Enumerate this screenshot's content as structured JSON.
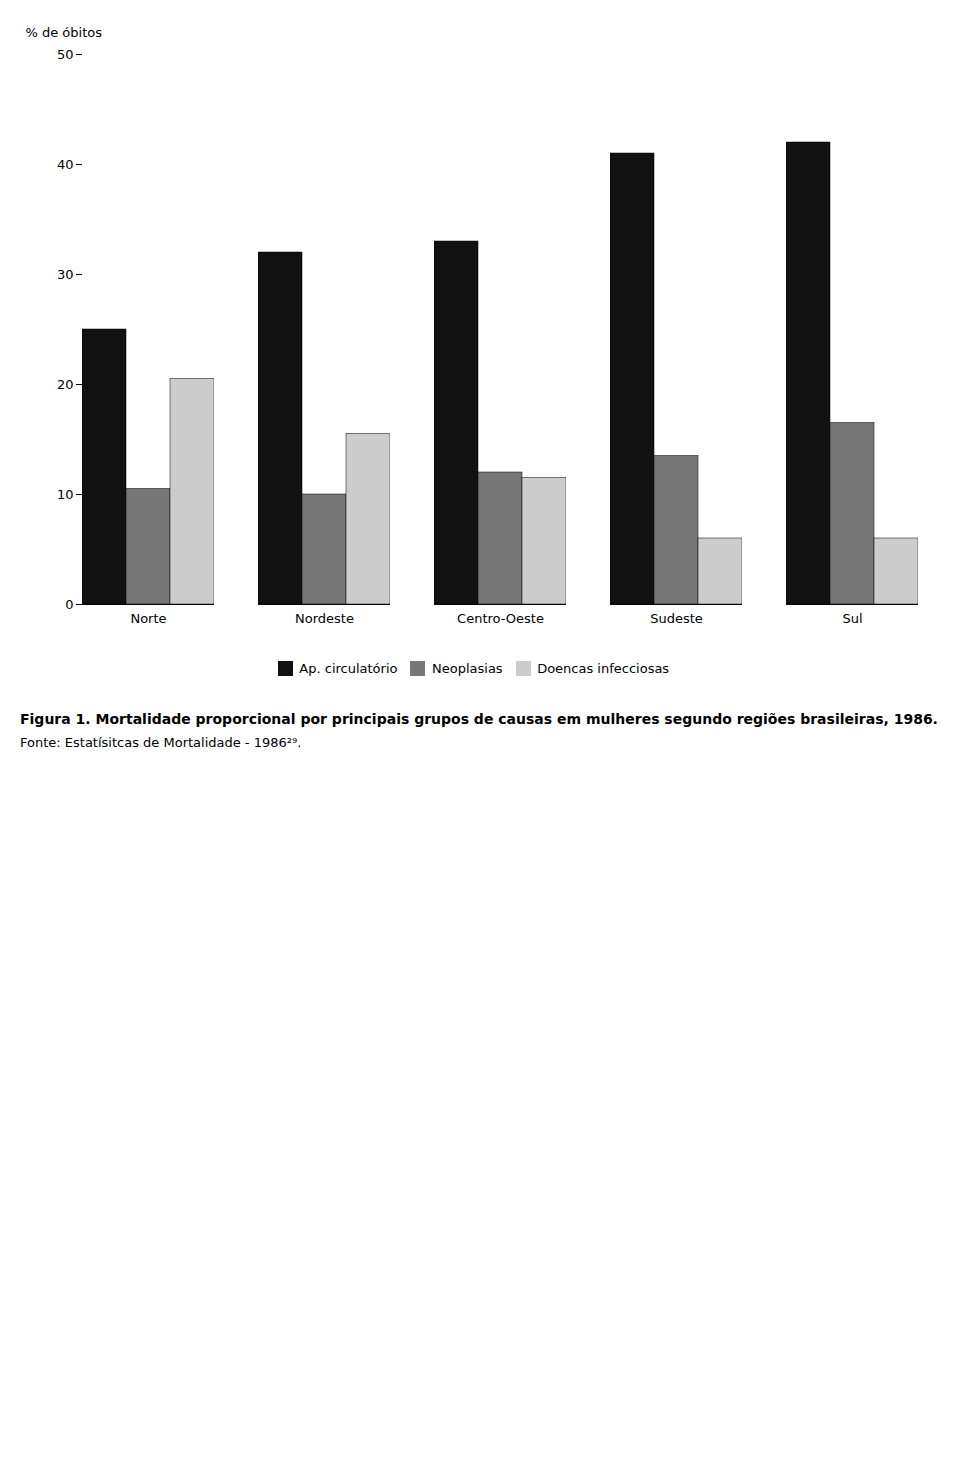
{
  "chart_data": {
    "type": "bar",
    "title": "Figura 1. Mortalidade proporcional por principais grupos de causas em mulheres segundo regiões brasileiras, 1986.",
    "annotations": [
      "Fonte: Estatísitcas de Mortalidade - 1986²⁹."
    ],
    "categories": [
      "Norte",
      "Nordeste",
      "Centro-Oeste",
      "Sudeste",
      "Sul"
    ],
    "series": [
      {
        "name": "Ap. circulatório",
        "color": "#111111",
        "values": [
          25.0,
          32.0,
          33.0,
          41.0,
          42.0
        ]
      },
      {
        "name": "Neoplasias",
        "color": "#777777",
        "values": [
          10.5,
          10.0,
          12.0,
          13.5,
          16.5
        ]
      },
      {
        "name": "Doencas infecciosas",
        "color": "#cccccc",
        "values": [
          20.5,
          15.5,
          11.5,
          6.0,
          6.0
        ]
      }
    ],
    "ylabel": "% de óbitos",
    "ylim": [
      0,
      50
    ],
    "yticks": [
      0,
      10,
      20,
      30,
      40,
      50
    ],
    "grid": false,
    "legend": "bottom"
  }
}
